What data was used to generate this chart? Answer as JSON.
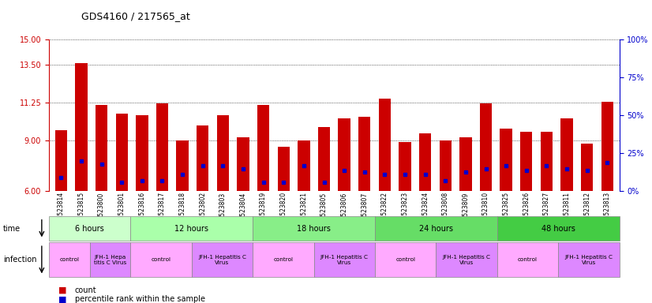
{
  "title": "GDS4160 / 217565_at",
  "samples": [
    "GSM523814",
    "GSM523815",
    "GSM523800",
    "GSM523801",
    "GSM523816",
    "GSM523817",
    "GSM523818",
    "GSM523802",
    "GSM523803",
    "GSM523804",
    "GSM523819",
    "GSM523820",
    "GSM523821",
    "GSM523805",
    "GSM523806",
    "GSM523807",
    "GSM523822",
    "GSM523823",
    "GSM523824",
    "GSM523808",
    "GSM523809",
    "GSM523810",
    "GSM523825",
    "GSM523826",
    "GSM523827",
    "GSM523811",
    "GSM523812",
    "GSM523813"
  ],
  "red_values": [
    9.6,
    13.6,
    11.1,
    10.6,
    10.5,
    11.2,
    9.0,
    9.9,
    10.5,
    9.2,
    11.1,
    8.6,
    9.0,
    9.8,
    10.3,
    10.4,
    11.5,
    8.9,
    9.4,
    9.0,
    9.2,
    11.2,
    9.7,
    9.5,
    9.5,
    10.3,
    8.8,
    11.3
  ],
  "blue_values": [
    6.8,
    7.8,
    7.6,
    6.5,
    6.6,
    6.6,
    7.0,
    7.5,
    7.5,
    7.3,
    6.5,
    6.5,
    7.5,
    6.5,
    7.2,
    7.1,
    7.0,
    7.0,
    7.0,
    6.6,
    7.1,
    7.3,
    7.5,
    7.2,
    7.5,
    7.3,
    7.2,
    7.7
  ],
  "ymin": 6,
  "ymax": 15,
  "yticks_left": [
    6,
    9,
    11.25,
    13.5,
    15
  ],
  "yticks_right": [
    0,
    25,
    50,
    75,
    100
  ],
  "time_groups": [
    {
      "label": "6 hours",
      "start": 0,
      "end": 4,
      "color": "#ccffcc"
    },
    {
      "label": "12 hours",
      "start": 4,
      "end": 10,
      "color": "#aaffaa"
    },
    {
      "label": "18 hours",
      "start": 10,
      "end": 16,
      "color": "#88ee88"
    },
    {
      "label": "24 hours",
      "start": 16,
      "end": 22,
      "color": "#66dd66"
    },
    {
      "label": "48 hours",
      "start": 22,
      "end": 28,
      "color": "#44cc44"
    }
  ],
  "infection_groups": [
    {
      "label": "control",
      "start": 0,
      "end": 2,
      "color": "#ffaaff"
    },
    {
      "label": "JFH-1 Hepa\ntitis C Virus",
      "start": 2,
      "end": 4,
      "color": "#dd88ff"
    },
    {
      "label": "control",
      "start": 4,
      "end": 7,
      "color": "#ffaaff"
    },
    {
      "label": "JFH-1 Hepatitis C\nVirus",
      "start": 7,
      "end": 10,
      "color": "#dd88ff"
    },
    {
      "label": "control",
      "start": 10,
      "end": 13,
      "color": "#ffaaff"
    },
    {
      "label": "JFH-1 Hepatitis C\nVirus",
      "start": 13,
      "end": 16,
      "color": "#dd88ff"
    },
    {
      "label": "control",
      "start": 16,
      "end": 19,
      "color": "#ffaaff"
    },
    {
      "label": "JFH-1 Hepatitis C\nVirus",
      "start": 19,
      "end": 22,
      "color": "#dd88ff"
    },
    {
      "label": "control",
      "start": 22,
      "end": 25,
      "color": "#ffaaff"
    },
    {
      "label": "JFH-1 Hepatitis C\nVirus",
      "start": 25,
      "end": 28,
      "color": "#dd88ff"
    }
  ],
  "bar_color": "#cc0000",
  "blue_marker_color": "#0000cc",
  "background_color": "#ffffff",
  "left_axis_color": "#cc0000",
  "right_axis_color": "#0000cc"
}
